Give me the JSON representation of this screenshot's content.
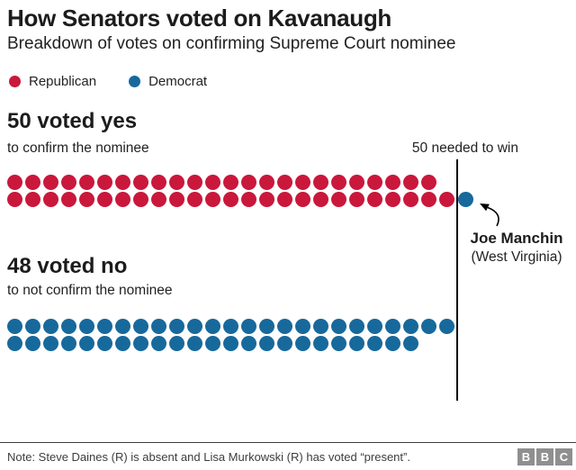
{
  "chart_data": {
    "type": "dot-matrix",
    "title": "How Senators voted on Kavanaugh",
    "subtitle": "Breakdown of votes on confirming Supreme Court nominee",
    "threshold": {
      "value": 50,
      "label": "50 needed to win"
    },
    "groups": [
      {
        "heading": "50 voted yes",
        "subheading": "to confirm the nominee",
        "total": 50,
        "breakdown": {
          "Republican": 49,
          "Democrat": 1
        },
        "rows": [
          [
            {
              "party": "Republican",
              "count": 24
            }
          ],
          [
            {
              "party": "Republican",
              "count": 25
            },
            {
              "party": "Democrat",
              "count": 1
            }
          ]
        ]
      },
      {
        "heading": "48 voted no",
        "subheading": "to not confirm the nominee",
        "total": 48,
        "breakdown": {
          "Republican": 0,
          "Democrat": 48
        },
        "rows": [
          [
            {
              "party": "Democrat",
              "count": 25
            }
          ],
          [
            {
              "party": "Democrat",
              "count": 23
            }
          ]
        ]
      }
    ],
    "annotation": {
      "name": "Joe Manchin",
      "detail": "(West Virginia)",
      "party": "Democrat",
      "vote": "yes"
    }
  },
  "legend": {
    "items": [
      {
        "label": "Republican",
        "party": "rep"
      },
      {
        "label": "Democrat",
        "party": "dem"
      }
    ]
  },
  "colors": {
    "republican": "#c9183c",
    "democrat": "#17699c",
    "threshold_line": "#000000",
    "logo_gray": "#8f8f8f"
  },
  "footer": {
    "note": "Note: Steve Daines (R) is absent and Lisa Murkowski (R) has voted “present”.",
    "logo_letters": [
      "B",
      "B",
      "C"
    ]
  }
}
